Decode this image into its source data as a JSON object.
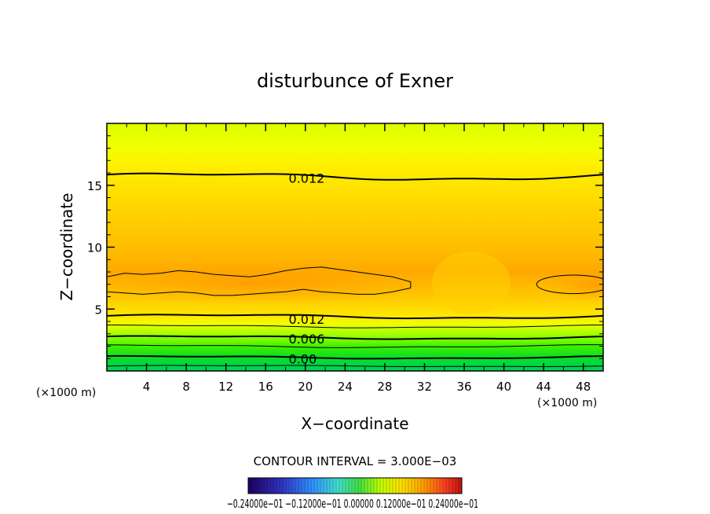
{
  "chart_data": {
    "type": "heatmap",
    "subtype": "filled-contour",
    "title": "disturbunce of Exner",
    "xlabel": "X−coordinate",
    "ylabel": "Z−coordinate",
    "x_unit_left": "(×1000 m)",
    "x_unit_right": "(×1000 m)",
    "xlim": [
      0,
      50
    ],
    "ylim": [
      0,
      20
    ],
    "x_ticks": [
      4,
      8,
      12,
      16,
      20,
      24,
      28,
      32,
      36,
      40,
      44,
      48
    ],
    "y_ticks": [
      5,
      10,
      15
    ],
    "contour_labels": [
      {
        "text": "0.012",
        "x": 18,
        "y": 15.6
      },
      {
        "text": "0.012",
        "x": 18,
        "y": 4.2
      },
      {
        "text": "0.006",
        "x": 18,
        "y": 2.6
      },
      {
        "text": "0.00",
        "x": 18,
        "y": 1.0
      }
    ],
    "contour_interval_text": "CONTOUR INTERVAL = 3.000E−03",
    "colorbar_labels_text": "−0.24000e−01  −0.12000e−01  0.00000  0.12000e−01  0.24000e−01",
    "colorbar_range": [
      -0.024,
      0.024
    ],
    "colors": {
      "frame": "#000000",
      "top_fill": "#d4ff00",
      "mid_fill": "#ffd700",
      "peak_fill": "#ffa500",
      "low_fill": "#00e040"
    }
  }
}
